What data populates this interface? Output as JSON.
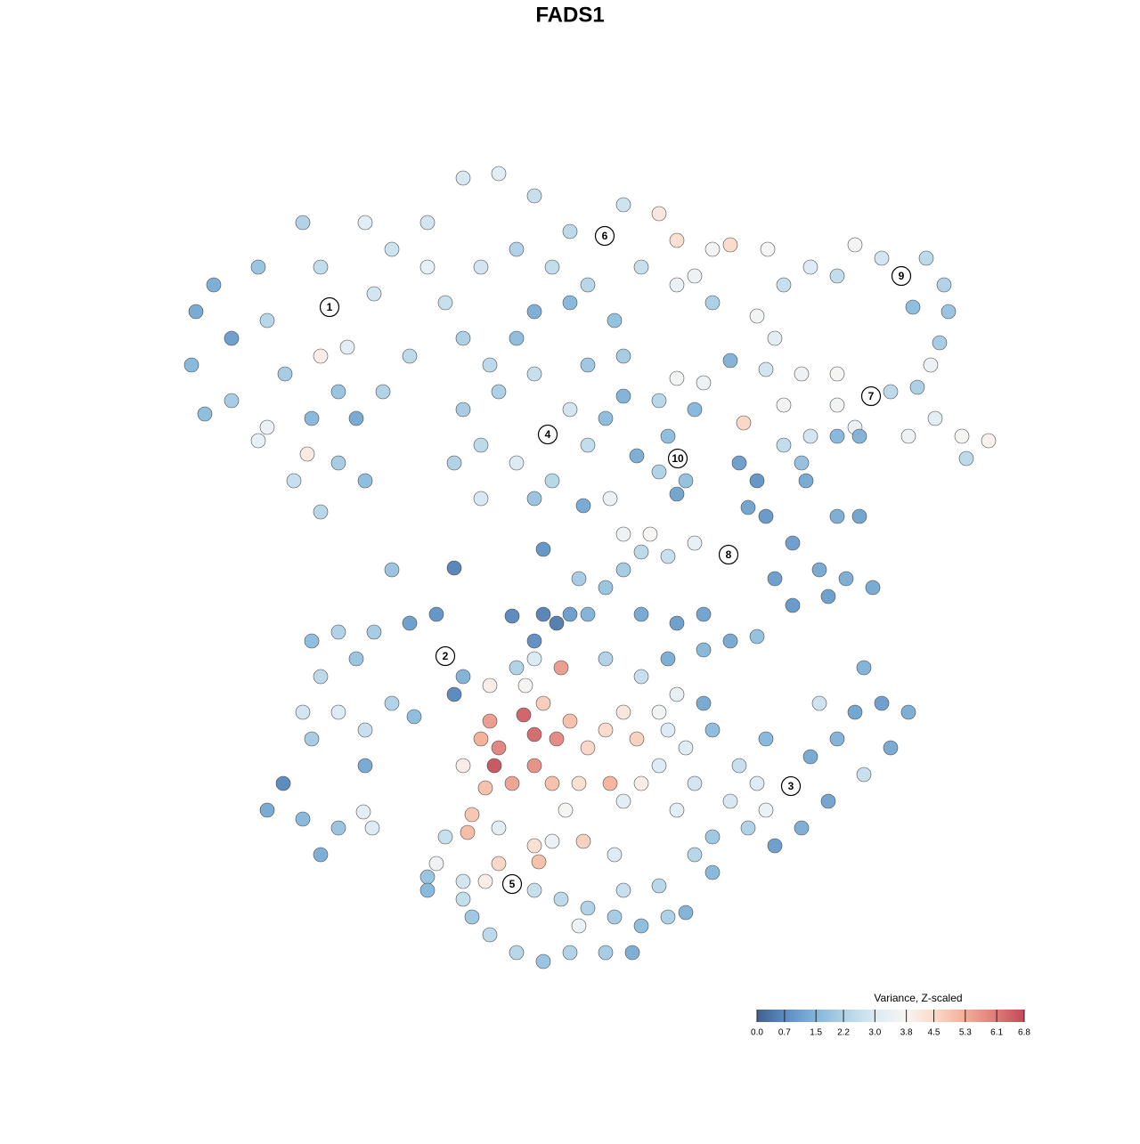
{
  "chart_data": {
    "type": "scatter",
    "title": "FADS1",
    "xlim": [
      20,
      114
    ],
    "ylim": [
      18.5,
      109.5
    ],
    "x": [
      22,
      21.5,
      24,
      26,
      29,
      30,
      32,
      34,
      36,
      37,
      39,
      41,
      42,
      44,
      46,
      35,
      38,
      30,
      29,
      33,
      36,
      38,
      41,
      36,
      40,
      43,
      26,
      23,
      34.5,
      48,
      52,
      56,
      60,
      64,
      68,
      70,
      74,
      76,
      80,
      82,
      78,
      72,
      66,
      62,
      58,
      54,
      50,
      52,
      48,
      60,
      64,
      69,
      70,
      66,
      58,
      55,
      76,
      74,
      85,
      86.2,
      80,
      52,
      54,
      56,
      60,
      61.5,
      64,
      66,
      58,
      60,
      54,
      51,
      62,
      68,
      70,
      71.5,
      65.5,
      68.5,
      75,
      76.1,
      77,
      78,
      74,
      76,
      79,
      76,
      83.5,
      82,
      88,
      91,
      94,
      96,
      99,
      101.2,
      104,
      106,
      106.5,
      105.5,
      102.5,
      104.5,
      87,
      90,
      94,
      97.8,
      100,
      103,
      105,
      108,
      111,
      108.5,
      102,
      96,
      94,
      88,
      86,
      83,
      85,
      84,
      86,
      88,
      91,
      94,
      96.5,
      90,
      90.5,
      94,
      96.5,
      89,
      92,
      95,
      98,
      89,
      93,
      87,
      81.8,
      78,
      75,
      72,
      70,
      68,
      72,
      76,
      79,
      75,
      79,
      82,
      85,
      73,
      70,
      61,
      62.5,
      60,
      57.5,
      51,
      61,
      64,
      66,
      65,
      35,
      38,
      42,
      46,
      49,
      50,
      52,
      51,
      40,
      36,
      34,
      38,
      41,
      44,
      41,
      35,
      44,
      46.5,
      30,
      31.8,
      34,
      38,
      36,
      40.8,
      41.8,
      55,
      58.8,
      60,
      56,
      55.5,
      57.5,
      60,
      62.5,
      63,
      61,
      64,
      66,
      68,
      70,
      71.5,
      68.5,
      65,
      62,
      54.5,
      54,
      52,
      55,
      59,
      74,
      75,
      76,
      74,
      72,
      70,
      63.5,
      60,
      58,
      68,
      72,
      53,
      52.5,
      56,
      60,
      60.5,
      56,
      62,
      65.5,
      79,
      80,
      83,
      86,
      88.8,
      91,
      94,
      96,
      99,
      102,
      100,
      97,
      93,
      90,
      87,
      84,
      80,
      78,
      80,
      76,
      82,
      85,
      97,
      92,
      86,
      78,
      77,
      50,
      49,
      52,
      54.5,
      57.5,
      60,
      63,
      66,
      69,
      72,
      75,
      71,
      68,
      64,
      61,
      58,
      55,
      53,
      52,
      48,
      69,
      70,
      65,
      48,
      77,
      74
    ],
    "y": [
      93,
      87,
      96,
      90,
      98,
      92,
      86,
      103,
      98,
      93.5,
      89,
      103,
      95,
      100,
      88,
      81,
      84,
      80,
      78.5,
      74,
      70.5,
      76,
      74,
      88,
      81,
      84,
      83,
      81.5,
      77,
      103,
      108,
      108.5,
      106,
      102,
      101.5,
      105,
      104,
      101,
      100,
      100.5,
      97,
      98,
      96,
      98,
      100,
      98,
      94,
      90,
      98,
      93,
      94,
      92,
      88,
      87,
      90,
      87,
      96,
      83,
      92.5,
      100,
      94,
      82,
      78,
      84,
      86,
      79.2,
      82,
      78,
      76,
      72,
      72,
      76,
      74,
      81,
      83.5,
      76.8,
      71.2,
      72,
      79,
      76.5,
      74,
      82,
      75,
      72.5,
      85,
      85.5,
      80.5,
      87.5,
      96,
      98,
      97,
      100.5,
      99,
      97,
      99,
      96,
      93,
      89.5,
      93.5,
      87,
      90,
      86,
      86,
      83.5,
      84,
      84.5,
      81,
      79,
      78.5,
      76.5,
      79,
      80,
      82.5,
      82.5,
      86.5,
      76,
      74,
      71,
      70,
      78,
      79,
      79,
      79,
      76,
      74,
      70,
      70,
      67,
      64,
      63,
      62,
      60,
      61,
      63,
      65.7,
      67,
      65.5,
      66,
      64,
      62,
      59,
      58,
      59,
      54,
      55,
      56,
      56.5,
      68,
      68,
      59,
      58,
      56,
      58.8,
      64.2,
      66.3,
      59,
      59,
      63,
      56,
      57,
      57,
      58,
      59,
      54.3,
      52,
      50,
      54,
      52,
      48,
      48,
      46,
      49,
      42,
      45,
      64,
      47.5,
      37,
      40,
      36,
      35,
      32,
      36.8,
      35,
      47,
      47.7,
      45.5,
      44,
      42,
      40,
      42,
      45,
      53,
      49,
      47,
      44,
      46,
      48,
      45,
      40,
      40,
      40,
      39.5,
      45,
      42,
      51,
      51,
      48,
      46,
      50,
      42,
      40,
      38,
      37,
      54,
      53,
      54,
      52,
      36.5,
      34.5,
      35,
      33,
      31.2,
      31,
      33.5,
      33.5,
      49,
      46,
      42,
      45,
      39.7,
      43,
      45,
      48,
      49,
      48,
      44,
      41,
      38,
      35,
      33,
      35,
      34,
      32,
      30,
      37,
      38,
      40,
      53,
      49,
      37,
      40,
      44,
      34,
      31,
      29,
      29,
      28.7,
      28,
      27,
      26,
      25,
      24,
      25,
      21,
      21,
      21,
      20,
      21,
      23,
      25,
      27,
      29.5,
      32,
      28,
      24,
      28,
      25.5,
      28.5
    ],
    "values": [
      1.2,
      1.5,
      1.3,
      1.0,
      1.8,
      2.3,
      2.0,
      2.2,
      2.5,
      3.0,
      3.2,
      3.1,
      2.8,
      2.7,
      2.4,
      1.5,
      1.8,
      3.4,
      3.3,
      2.6,
      2.3,
      2.0,
      1.6,
      4.0,
      1.2,
      2.2,
      2.0,
      1.6,
      4.1,
      2.8,
      2.9,
      3.2,
      2.6,
      2.4,
      3.0,
      2.7,
      4.2,
      4.4,
      3.6,
      4.5,
      3.5,
      2.6,
      2.3,
      2.5,
      2.2,
      2.8,
      2.6,
      2.1,
      3.3,
      1.3,
      1.5,
      1.7,
      2.0,
      1.9,
      1.6,
      2.4,
      3.4,
      2.3,
      3.6,
      3.8,
      2.1,
      2.0,
      2.4,
      2.1,
      2.6,
      3.2,
      2.8,
      2.5,
      3.0,
      1.8,
      2.9,
      2.2,
      2.3,
      1.6,
      1.4,
      1.3,
      1.2,
      3.4,
      1.6,
      1.5,
      1.7,
      1.5,
      2.2,
      1.1,
      3.4,
      3.6,
      4.6,
      1.4,
      2.6,
      3.0,
      2.5,
      3.6,
      2.8,
      3.1,
      2.4,
      2.2,
      1.8,
      2.0,
      1.6,
      3.4,
      3.2,
      3.5,
      3.7,
      3.8,
      2.4,
      2.1,
      3.2,
      3.7,
      3.9,
      2.4,
      3.5,
      3.4,
      3.6,
      3.6,
      2.8,
      1.0,
      0.8,
      1.1,
      0.9,
      2.5,
      2.8,
      1.5,
      1.4,
      1.7,
      1.2,
      1.3,
      1.1,
      1.0,
      1.2,
      1.3,
      1.2,
      0.9,
      1.0,
      1.0,
      2.9,
      3.3,
      2.6,
      2.4,
      2.0,
      1.8,
      1.2,
      1.0,
      1.1,
      1.3,
      1.5,
      1.2,
      1.7,
      3.8,
      3.5,
      0.5,
      0.4,
      0.7,
      0.6,
      0.5,
      0.8,
      1.0,
      1.4,
      2.0,
      1.6,
      2.2,
      2.0,
      1.0,
      0.8,
      2.9,
      1.4,
      0.6,
      1.8,
      2.4,
      2.8,
      3.0,
      2.6,
      2.2,
      1.2,
      2.0,
      1.8,
      1.6,
      1.2,
      0.6,
      1.5,
      1.8,
      1.3,
      3.2,
      3.0,
      5.6,
      6.5,
      6.4,
      6.0,
      6.7,
      5.5,
      5.8,
      5.9,
      5.6,
      4.8,
      5.0,
      4.6,
      4.5,
      4.2,
      4.7,
      5.2,
      4.4,
      5.0,
      5.0,
      5.3,
      4.0,
      4.0,
      3.8,
      3.6,
      3.0,
      3.3,
      3.0,
      4.0,
      3.2,
      3.7,
      3.0,
      2.2,
      2.2,
      2.6,
      4.9,
      5.1,
      3.2,
      4.4,
      5.0,
      4.6,
      3.4,
      4.7,
      1.2,
      1.6,
      2.6,
      1.5,
      1.3,
      1.2,
      1.4,
      1.1,
      1.0,
      1.3,
      1.2,
      2.6,
      1.1,
      1.3,
      1.0,
      2.2,
      1.9,
      2.3,
      1.5,
      3.2,
      2.9,
      3.0,
      1.4,
      2.7,
      3.4,
      2.8,
      3.1,
      2.6,
      3.5,
      2.8,
      4.0,
      3.4,
      2.6,
      2.4,
      2.2,
      2.0,
      1.6,
      2.1,
      1.3,
      2.0,
      2.2,
      1.8,
      2.3,
      2.4,
      1.9,
      2.5,
      1.8,
      3.0,
      2.6,
      3.4,
      1.5,
      1.4,
      2.3
    ],
    "clusters": [
      {
        "label": "1",
        "x": 37,
        "y": 93.5
      },
      {
        "label": "2",
        "x": 50,
        "y": 54.3
      },
      {
        "label": "3",
        "x": 88.8,
        "y": 39.7
      },
      {
        "label": "4",
        "x": 61.5,
        "y": 79.2
      },
      {
        "label": "5",
        "x": 57.5,
        "y": 28.7
      },
      {
        "label": "6",
        "x": 67.9,
        "y": 101.5
      },
      {
        "label": "7",
        "x": 97.8,
        "y": 83.5
      },
      {
        "label": "8",
        "x": 81.8,
        "y": 65.7
      },
      {
        "label": "9",
        "x": 101.2,
        "y": 97
      },
      {
        "label": "10",
        "x": 76.1,
        "y": 76.5
      }
    ],
    "colorbar": {
      "title": "Variance, Z-scaled",
      "clim": [
        0,
        6.8
      ],
      "colors": [
        "#40618f",
        "#5b8fc4",
        "#84b6da",
        "#b2d4e7",
        "#dcebf3",
        "#f7f5f3",
        "#fbd9c7",
        "#f3ae97",
        "#df7e78",
        "#c24a58"
      ],
      "ticks": [
        {
          "value": 0,
          "label": "0.0"
        },
        0.7,
        1.5,
        2.2,
        {
          "value": 3,
          "label": "3.0"
        },
        3.8,
        4.5,
        5.3,
        6.1,
        6.8
      ]
    }
  }
}
